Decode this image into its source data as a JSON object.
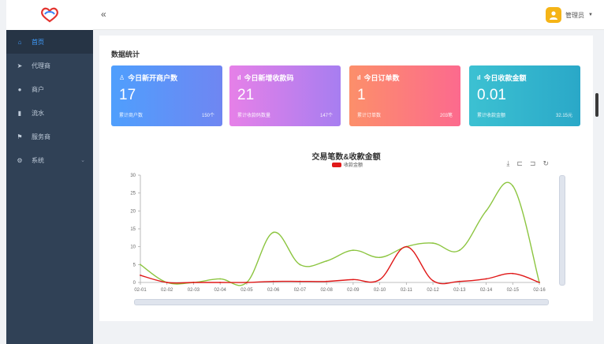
{
  "header": {
    "collapse_icon": "«",
    "user_name": "管理员",
    "caret": "▼"
  },
  "sidebar": {
    "items": [
      {
        "label": "首页",
        "icon": "home-icon",
        "glyph": "⌂"
      },
      {
        "label": "代理商",
        "icon": "send-icon",
        "glyph": "➤"
      },
      {
        "label": "商户",
        "icon": "user-icon",
        "glyph": "●"
      },
      {
        "label": "流水",
        "icon": "bar-chart-icon",
        "glyph": "▮"
      },
      {
        "label": "服务商",
        "icon": "flag-icon",
        "glyph": "⚑"
      },
      {
        "label": "系统",
        "icon": "gear-icon",
        "glyph": "⚙",
        "arrow": "⌄"
      }
    ]
  },
  "main": {
    "section_title": "数据统计"
  },
  "cards": [
    {
      "icon_glyph": "♙",
      "title": "今日新开商户数",
      "value": "17",
      "foot_label": "累计商户数",
      "foot_value": "150个"
    },
    {
      "icon_glyph": "ıl",
      "title": "今日新增收款码",
      "value": "21",
      "foot_label": "累计收款码数量",
      "foot_value": "147个"
    },
    {
      "icon_glyph": "ıl",
      "title": "今日订单数",
      "value": "1",
      "foot_label": "累计订单数",
      "foot_value": "203笔"
    },
    {
      "icon_glyph": "ıl",
      "title": "今日收款金额",
      "value": "0.01",
      "foot_label": "累计收款金额",
      "foot_value": "32.15元"
    }
  ],
  "chart_data": {
    "type": "line",
    "title": "交易笔数&收款金额",
    "categories": [
      "02-01",
      "02-02",
      "02-03",
      "02-04",
      "02-05",
      "02-06",
      "02-07",
      "02-08",
      "02-09",
      "02-10",
      "02-11",
      "02-12",
      "02-13",
      "02-14",
      "02-15",
      "02-16"
    ],
    "series": [
      {
        "name": "",
        "color": "#8cc540",
        "values": [
          5,
          0,
          0,
          1,
          0,
          14,
          5,
          6,
          9,
          7,
          10,
          11,
          9,
          20,
          27,
          0
        ]
      },
      {
        "name": "收款金额",
        "color": "#e01919",
        "values": [
          2,
          0,
          0,
          0,
          0,
          0.3,
          0.3,
          0.3,
          0.8,
          0.8,
          10,
          0.5,
          0.3,
          1,
          2.5,
          0
        ]
      }
    ],
    "ylim": [
      0,
      30
    ],
    "yticks": [
      0,
      5,
      10,
      15,
      20,
      25,
      30
    ],
    "grid": false,
    "legend_position": "top-center"
  },
  "toolbox": [
    "⤓",
    "⊏",
    "⊐",
    "↻"
  ],
  "colors": {
    "sidebar_bg": "#304156",
    "active": "#409eff",
    "line_green": "#8cc540",
    "line_red": "#e01919"
  }
}
